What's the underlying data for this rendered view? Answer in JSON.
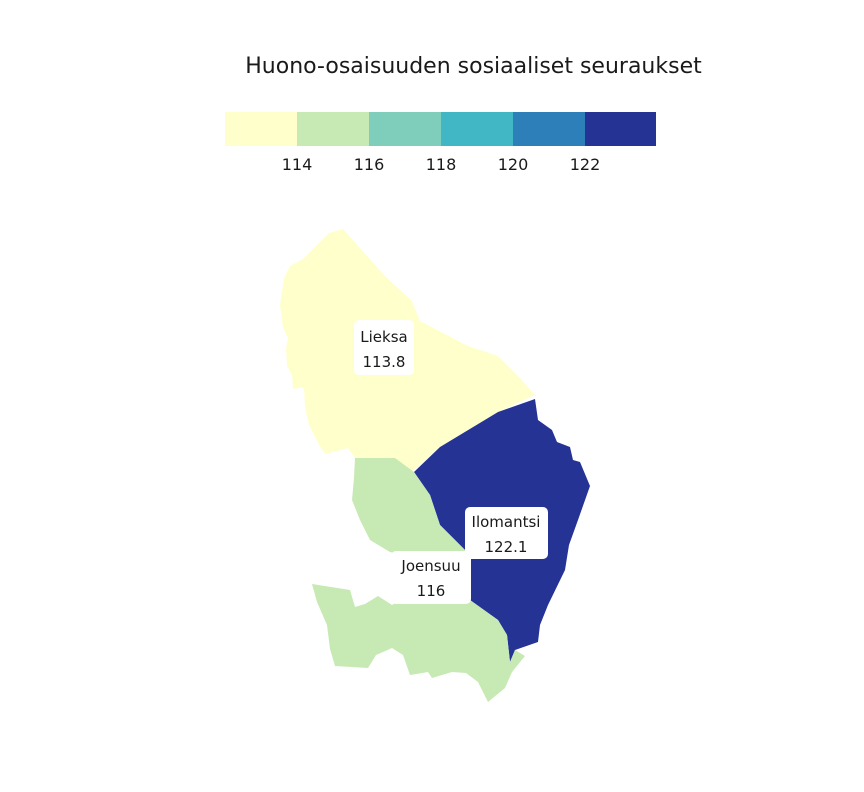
{
  "title": "Huono-osaisuuden sosiaaliset seuraukset",
  "legend": {
    "colors": [
      "#ffffcc",
      "#c7e9b4",
      "#7fcdbb",
      "#41b6c4",
      "#2c7fb8",
      "#253494"
    ],
    "ticks": [
      "114",
      "116",
      "118",
      "120",
      "122"
    ]
  },
  "chart_data": {
    "type": "choropleth",
    "title": "Huono-osaisuuden sosiaaliset seuraukset",
    "scale_breaks": [
      114,
      116,
      118,
      120,
      122
    ],
    "regions": [
      {
        "name": "Lieksa",
        "value": "113.8",
        "color": "#ffffcc"
      },
      {
        "name": "Ilomantsi",
        "value": "122.1",
        "color": "#253494"
      },
      {
        "name": "Joensuu",
        "value": "116",
        "color": "#c7e9b4"
      }
    ]
  }
}
